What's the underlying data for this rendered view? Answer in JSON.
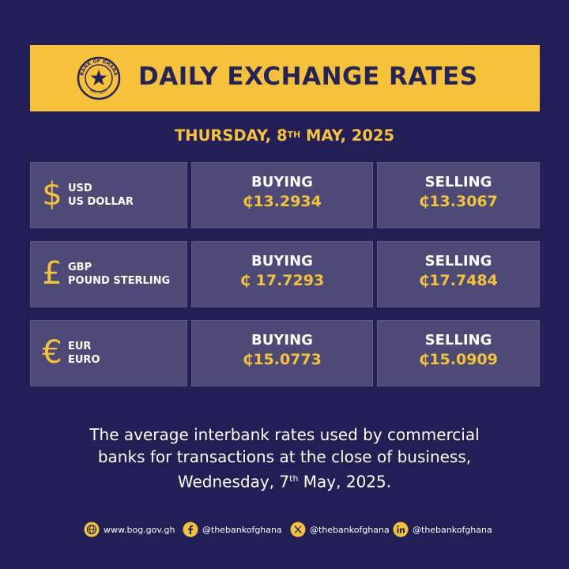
{
  "banner": {
    "title": "DAILY EXCHANGE RATES",
    "seal_text_top": "BANK OF GHANA",
    "seal_text_bottom": "EST. 1957"
  },
  "date": {
    "prefix": "THURSDAY, 8",
    "sup": "TH",
    "suffix": " MAY, 2025"
  },
  "rates": [
    {
      "symbol": "$",
      "code": "USD",
      "name": "US DOLLAR",
      "buy_label": "BUYING",
      "buy": "₵13.2934",
      "sell_label": "SELLING",
      "sell": "₵13.3067"
    },
    {
      "symbol": "£",
      "code": "GBP",
      "name": "POUND STERLING",
      "buy_label": "BUYING",
      "buy": "₵ 17.7293",
      "sell_label": "SELLING",
      "sell": "₵17.7484"
    },
    {
      "symbol": "€",
      "code": "EUR",
      "name": "EURO",
      "buy_label": "BUYING",
      "buy": "₵15.0773",
      "sell_label": "SELLING",
      "sell": "₵15.0909"
    }
  ],
  "note": {
    "line1": "The average interbank rates used by commercial",
    "line2": "banks for transactions at the close of business,",
    "line3_prefix": "Wednesday, 7",
    "line3_sup": "th",
    "line3_suffix": " May, 2025."
  },
  "footer": {
    "website": "www.bog.gov.gh",
    "facebook": "@thebankofghana",
    "x": "@thebankofghana",
    "linkedin": "@thebankofghana"
  },
  "colors": {
    "background": "#221f57",
    "accent": "#f5c23a",
    "cell": "#4d4a78"
  }
}
